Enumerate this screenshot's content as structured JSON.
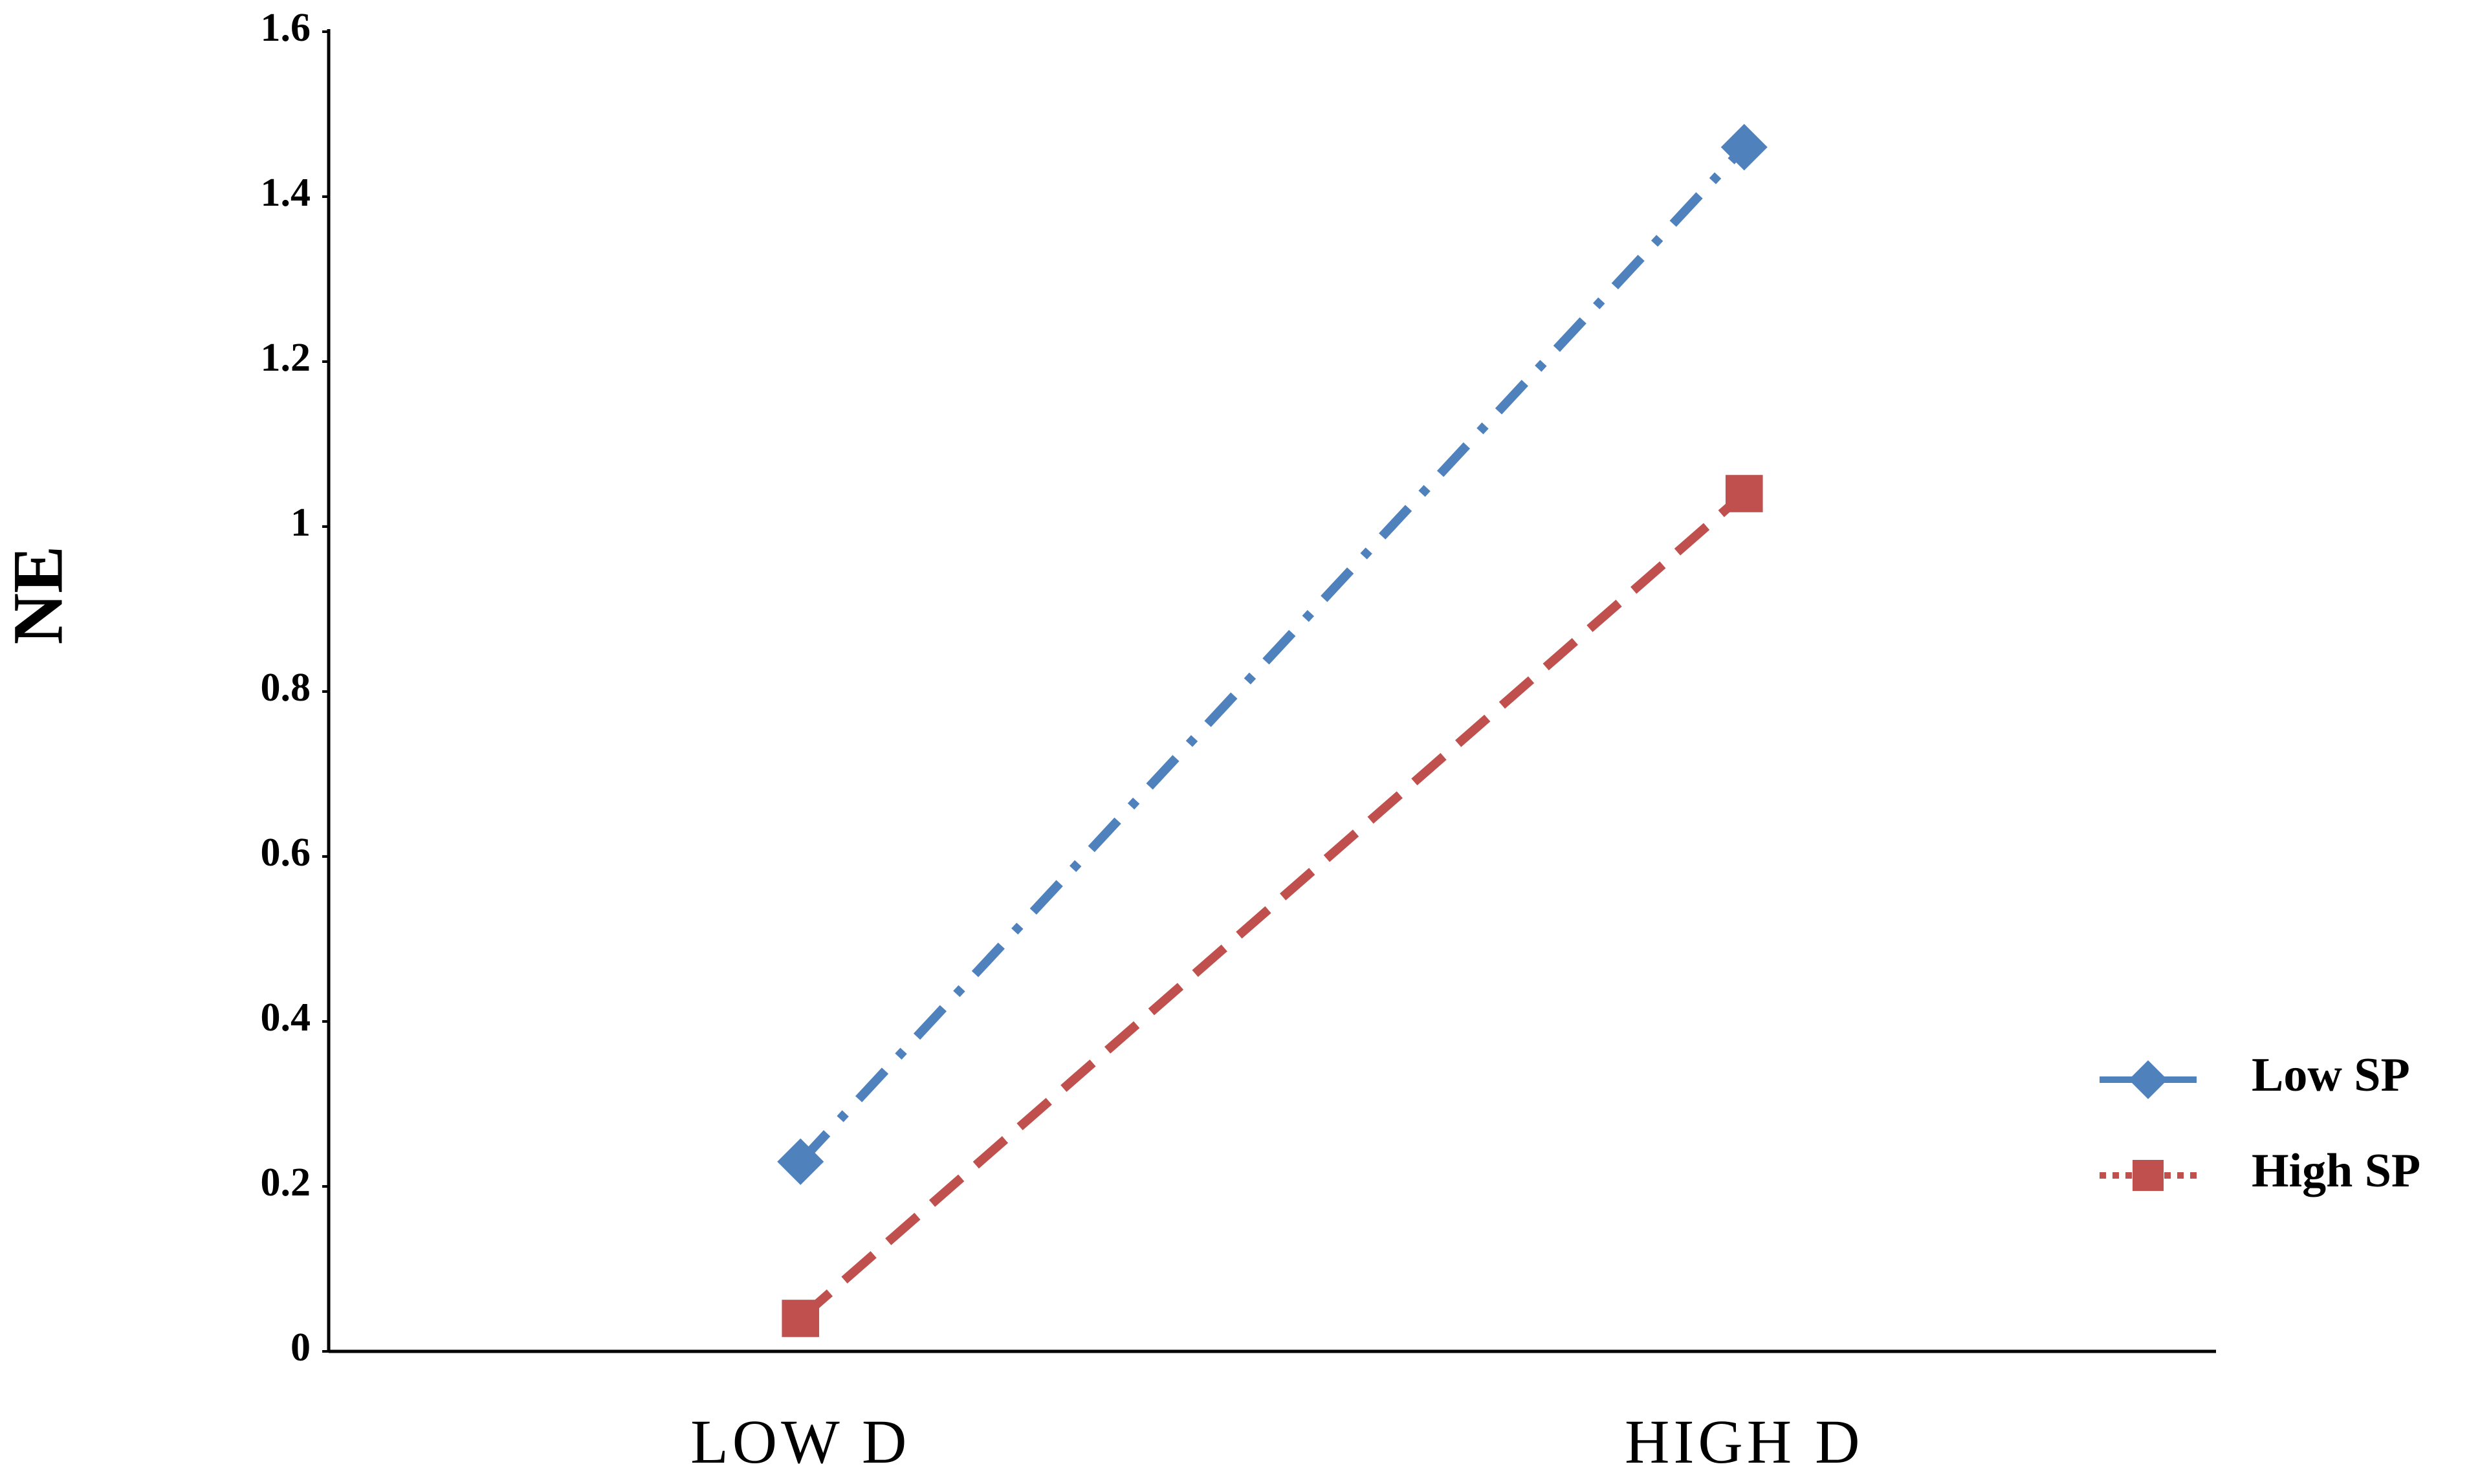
{
  "chart_data": {
    "type": "line",
    "y_label": "NE",
    "categories": [
      "LOW D",
      "HIGH D"
    ],
    "series": [
      {
        "name": "Low SP",
        "color": "#4f81bd",
        "dash": "dash-dot",
        "marker": "diamond",
        "values": [
          0.23,
          1.46
        ]
      },
      {
        "name": "High SP",
        "color": "#c0504d",
        "dash": "dash",
        "marker": "square",
        "values": [
          0.04,
          1.04
        ]
      }
    ],
    "ylim": [
      0,
      1.6
    ],
    "yticks": [
      0,
      0.2,
      0.4,
      0.6,
      0.8,
      1,
      1.2,
      1.4,
      1.6
    ],
    "grid": false,
    "legend": "right"
  }
}
